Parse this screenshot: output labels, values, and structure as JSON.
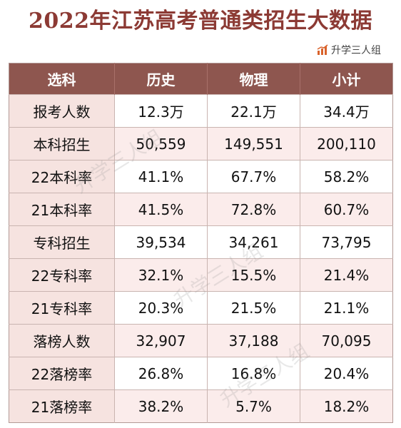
{
  "title": "2022年江苏高考普通类招生大数据",
  "brand": {
    "label": "升学三人组",
    "icon": "bar-chart-icon",
    "icon_color": "#d9622b"
  },
  "watermark": "升学三人组",
  "table": {
    "headers": [
      "选科",
      "历史",
      "物理",
      "小计"
    ],
    "rows": [
      [
        "报考人数",
        "12.3万",
        "22.1万",
        "34.4万"
      ],
      [
        "本科招生",
        "50,559",
        "149,551",
        "200,110"
      ],
      [
        "22本科率",
        "41.1%",
        "67.7%",
        "58.2%"
      ],
      [
        "21本科率",
        "41.5%",
        "72.8%",
        "60.7%"
      ],
      [
        "专科招生",
        "39,534",
        "34,261",
        "73,795"
      ],
      [
        "22专科率",
        "32.1%",
        "15.5%",
        "21.4%"
      ],
      [
        "21专科率",
        "20.3%",
        "21.5%",
        "21.1%"
      ],
      [
        "落榜人数",
        "32,907",
        "37,188",
        "70,095"
      ],
      [
        "22落榜率",
        "26.8%",
        "16.8%",
        "20.4%"
      ],
      [
        "21落榜率",
        "38.2%",
        "5.7%",
        "18.2%"
      ]
    ]
  },
  "colors": {
    "header_bg": "#8e564f",
    "title": "#8c3a34",
    "row_label_bg": "#f6e3e0"
  }
}
